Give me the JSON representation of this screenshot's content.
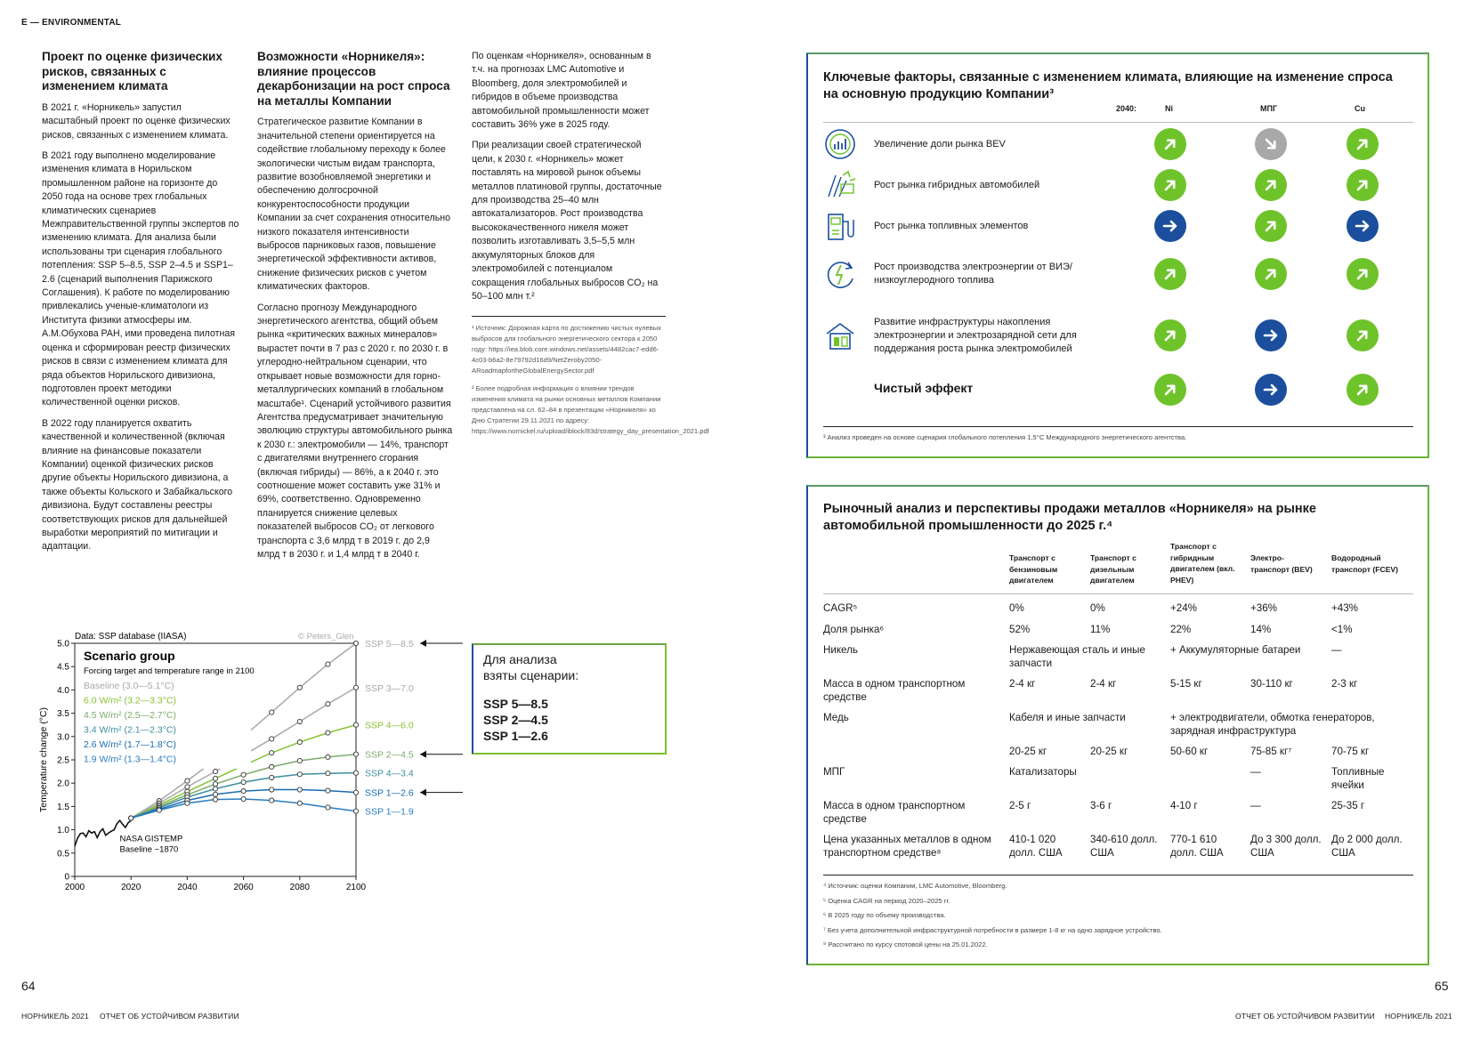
{
  "section_tag": "E — ENVIRONMENTAL",
  "col1": {
    "title": "Проект по оценке физических рисков, связанных с изменением климата",
    "p1": "В 2021 г. «Норникель» запустил масштабный проект по оценке физических рисков, связанных с изменением климата.",
    "p2": "В 2021 году выполнено моделирование изменения климата в Норильском промышленном районе на горизонте до 2050 года на основе трех глобальных климатических сценариев Межправительственной группы экспертов по изменению климата. Для анализа были использованы три сценария глобального потепления: SSP 5–8.5, SSP 2–4.5 и SSP1–2.6 (сценарий выполнения Парижского Соглашения). К работе по моделированию привлекались ученые-климатологи из Института физики атмосферы им. А.М.Обухова РАН, ими проведена пилотная оценка и сформирован реестр физических рисков в связи с изменением климата для ряда объектов Норильского дивизиона, подготовлен проект методики количественной оценки рисков.",
    "p3": "В 2022 году планируется охватить качественной и количественной (включая влияние на финансовые показатели Компании) оценкой физических рисков другие объекты Норильского дивизиона, а также объекты Кольского и Забайкальского дивизиона. Будут составлены реестры соответствующих рисков для дальнейшей выработки мероприятий по митигации и адаптации."
  },
  "col2": {
    "title": "Возможности «Норникеля»: влияние процессов декарбонизации на рост спроса на металлы Компании",
    "p1": "Стратегическое развитие Компании в значительной степени ориентируется на содействие глобальному переходу к более экологически чистым видам транспорта, развитие возобновляемой энергетики и обеспечению долгосрочной конкурентоспособности продукции Компании за счет сохранения относительно низкого показателя интенсивности выбросов парниковых газов, повышение энергетической эффективности активов, снижение физических рисков с учетом климатических факторов.",
    "p2": "Согласно прогнозу Международного энергетического агентства, общий объем рынка «критических важных минералов» вырастет почти в 7 раз с 2020 г. по 2030 г. в углеродно-нейтральном сценарии, что открывает новые возможности для горно-металлургических компаний в глобальном масштабе¹. Сценарий устойчивого развития Агентства предусматривает значительную эволюцию структуры автомобильного рынка к 2030 г.: электромобили — 14%, транспорт с двигателями внутреннего сгорания (включая гибриды) — 86%, а к 2040 г. это соотношение может составить уже 31% и 69%, соответственно. Одновременно планируется снижение целевых показателей выбросов CO₂ от легкового транспорта с 3,6 млрд т в 2019 г. до 2,9 млрд т в 2030 г. и 1,4 млрд т в 2040 г."
  },
  "col3": {
    "p1": "По оценкам «Норникеля», основанным в т.ч. на прогнозах LMC Automotive и Bloomberg, доля электромобилей и гибридов в объеме производства автомобильной промышленности может составить 36% уже в 2025 году.",
    "p2": "При реализации своей стратегической цели, к 2030 г. «Норникель» может поставлять на мировой рынок объемы металлов платиновой группы, достаточные для производства 25–40 млн автокатализаторов. Рост производства высококачественного никеля может позволить изготавливать 3,5–5,5 млн аккумуляторных блоков для электромобилей с потенциалом сокращения глобальных выбросов CO₂ на 50–100 млн т.²"
  },
  "footnotes_left": {
    "f1": "¹ Источник: Дорожная карта по достижению чистых нулевых выбросов для глобального энергетического сектора к 2050 году: https://iea.blob.core.windows.net/assets/4482cac7-edd6-4c03-b6a2-8e79792d16d9/NetZeroby2050-ARoadmapfortheGlobalEnergySector.pdf",
    "f2": "² Более подробная информация о влиянии трендов изменения климата на рынки основных металлов Компании представлена на сл. 62–84 в презентации «Норникеля» ко Дню Стратегии 29.11.2021 по адресу: https://www.nornickel.ru/upload/iblock/83d/strategy_day_presentation_2021.pdf"
  },
  "chart_data": {
    "type": "line",
    "source_label": "Data: SSP database (IIASA)",
    "credit": "© Peters_Glen",
    "legend_title": "Scenario group",
    "legend_subtitle": "Forcing target and temperature range in 2100",
    "legend_entries": [
      {
        "label": "Baseline (3.0—5.1°C)",
        "color": "#a8a8a8"
      },
      {
        "label": "6.0 W/m² (3.2—3.3°C)",
        "color": "#86c231"
      },
      {
        "label": "4.5 W/m² (2.5—2.7°C)",
        "color": "#7bab6c"
      },
      {
        "label": "3.4 W/m² (2.1—2.3°C)",
        "color": "#3a8f9e"
      },
      {
        "label": "2.6 W/m² (1.7—1.8°C)",
        "color": "#1a6bb0"
      },
      {
        "label": "1.9 W/m² (1.3—1.4°C)",
        "color": "#2a7cc0"
      }
    ],
    "ylabel": "Temperature change (°C)",
    "xlabel": "",
    "xlim": [
      2000,
      2100
    ],
    "ylim": [
      0,
      5.0
    ],
    "xticks": [
      2000,
      2020,
      2040,
      2060,
      2080,
      2100
    ],
    "yticks": [
      0,
      0.5,
      1.0,
      1.5,
      2.0,
      2.5,
      3.0,
      3.5,
      4.0,
      4.5,
      5.0
    ],
    "x": [
      2020,
      2030,
      2040,
      2050,
      2060,
      2070,
      2080,
      2090,
      2100
    ],
    "series": [
      {
        "name": "SSP 5—8.5",
        "color": "#a8a8a8",
        "values": [
          1.25,
          1.62,
          2.05,
          2.5,
          3.0,
          3.52,
          4.05,
          4.55,
          5.0
        ]
      },
      {
        "name": "SSP 3—7.0",
        "color": "#a8a8a8",
        "values": [
          1.25,
          1.57,
          1.92,
          2.25,
          2.6,
          2.95,
          3.32,
          3.7,
          4.05
        ]
      },
      {
        "name": "SSP 4—6.0",
        "color": "#86c231",
        "values": [
          1.25,
          1.53,
          1.82,
          2.1,
          2.38,
          2.65,
          2.88,
          3.08,
          3.25
        ]
      },
      {
        "name": "SSP 2—4.5",
        "color": "#7bab6c",
        "values": [
          1.25,
          1.5,
          1.75,
          1.98,
          2.18,
          2.35,
          2.48,
          2.56,
          2.62
        ]
      },
      {
        "name": "SSP 4—3.4",
        "color": "#3a8f9e",
        "values": [
          1.25,
          1.47,
          1.7,
          1.88,
          2.02,
          2.12,
          2.19,
          2.21,
          2.22
        ]
      },
      {
        "name": "SSP 1—2.6",
        "color": "#1a6bb0",
        "values": [
          1.25,
          1.44,
          1.63,
          1.76,
          1.83,
          1.86,
          1.86,
          1.84,
          1.8
        ]
      },
      {
        "name": "SSP 1—1.9",
        "color": "#2a7cc0",
        "values": [
          1.25,
          1.42,
          1.57,
          1.65,
          1.66,
          1.63,
          1.57,
          1.48,
          1.4
        ]
      }
    ],
    "historical": {
      "name": "NASA GISTEMP",
      "note": "Baseline ~1870"
    },
    "arrowed_series": [
      "SSP 5—8.5",
      "SSP 2—4.5",
      "SSP 1—2.6"
    ]
  },
  "scenarios_box": {
    "line1": "Для анализа",
    "line2": "взяты сценарии:",
    "s1": "SSP 5—8.5",
    "s2": "SSP 2—4.5",
    "s3": "SSP 1—2.6"
  },
  "key_factors": {
    "title": "Ключевые факторы, связанные с изменением климата, влияющие на изменение спроса на основную продукцию Компании³",
    "col_year": "2040:",
    "col_ni": "Ni",
    "col_mpg": "МПГ",
    "col_cu": "Cu",
    "rows": [
      {
        "label": "Увеличение доли рынка BEV",
        "icon": "market-growth-icon",
        "ni": "up",
        "mpg": "down",
        "cu": "up"
      },
      {
        "label": "Рост рынка гибридных автомобилей",
        "icon": "hybrid-car-icon",
        "ni": "up",
        "mpg": "up",
        "cu": "up"
      },
      {
        "label": "Рост рынка топливных элементов",
        "icon": "fuel-cell-icon",
        "ni": "flat",
        "mpg": "up",
        "cu": "flat"
      },
      {
        "label": "Рост производства электроэнергии от ВИЭ/низкоуглеродного топлива",
        "icon": "renewable-energy-icon",
        "ni": "up",
        "mpg": "up",
        "cu": "up"
      },
      {
        "label": "Развитие инфраструктуры накопления электроэнергии и электрозарядной сети для поддержания роста рынка электромобилей",
        "icon": "charging-infrastructure-icon",
        "ni": "up",
        "mpg": "flat",
        "cu": "up"
      },
      {
        "label": "Чистый эффект",
        "icon": "",
        "ni": "up",
        "mpg": "flat",
        "cu": "up"
      }
    ],
    "note": "³ Анализ проведен на основе сценария глобального потепления 1,5°C Международного энергетического агентства."
  },
  "market": {
    "title": "Рыночный анализ и перспективы продажи металлов «Норникеля» на рынке автомобильной промышленности до 2025 г.⁴",
    "headers": [
      "Транспорт с бензиновым двигателем",
      "Транспорт с дизельным двигателем",
      "Транспорт с гибридным двигателем (вкл. PHEV)",
      "Электро-транспорт (BEV)",
      "Водородный транспорт (FCEV)"
    ],
    "cagr_label": "CAGR⁵",
    "cagr": [
      "0%",
      "0%",
      "+24%",
      "+36%",
      "+43%"
    ],
    "share_label": "Доля рынка⁶",
    "share": [
      "52%",
      "11%",
      "22%",
      "14%",
      "<1%"
    ],
    "nickel_label": "Никель",
    "nickel_a": "Нержавеющая сталь и иные запчасти",
    "nickel_b": "+ Аккумуляторные батареи",
    "nickel_c": "—",
    "mass_label": "Масса в одном транспортном средстве",
    "nickel_mass": [
      "2-4 кг",
      "2-4 кг",
      "5-15 кг",
      "30-110 кг",
      "2-3 кг"
    ],
    "copper_label": "Медь",
    "copper_a": "Кабеля и иные запчасти",
    "copper_b": "+ электродвигатели, обмотка генераторов, зарядная инфраструктура",
    "copper_mass": [
      "20-25 кг",
      "20-25 кг",
      "50-60 кг",
      "75-85 кг⁷",
      "70-75 кг"
    ],
    "pgm_label": "МПГ",
    "pgm_a": "Катализаторы",
    "pgm_bev": "—",
    "pgm_fcev": "Топливные ячейки",
    "pgm_mass": [
      "2-5 г",
      "3-6 г",
      "4-10 г",
      "—",
      "25-35 г"
    ],
    "price_label": "Цена указанных металлов в одном транспортном средстве⁸",
    "price": [
      "410-1 020 долл. США",
      "340-610 долл. США",
      "770-1 610 долл. США",
      "До 3 300 долл. США",
      "До 2 000 долл. США"
    ],
    "notes": [
      "⁴ Источник: оценки Компании, LMC Automotive, Bloomberg.",
      "⁵ Оценка CAGR на период 2020–2025 гг.",
      "⁶ В 2025 году по объему производства.",
      "⁷ Без учета дополнительной инфраструктурной потребности в размере 1-8 кг на одно зарядное устройство.",
      "⁸ Рассчитано по курсу спотовой цены на 25.01.2022."
    ]
  },
  "page_left": "64",
  "page_right": "65",
  "footer_left_a": "НОРНИКЕЛЬ 2021",
  "footer_left_b": "ОТЧЕТ ОБ УСТОЙЧИВОМ РАЗВИТИИ",
  "footer_right_a": "ОТЧЕТ ОБ УСТОЙЧИВОМ РАЗВИТИИ",
  "footer_right_b": "НОРНИКЕЛЬ 2021"
}
